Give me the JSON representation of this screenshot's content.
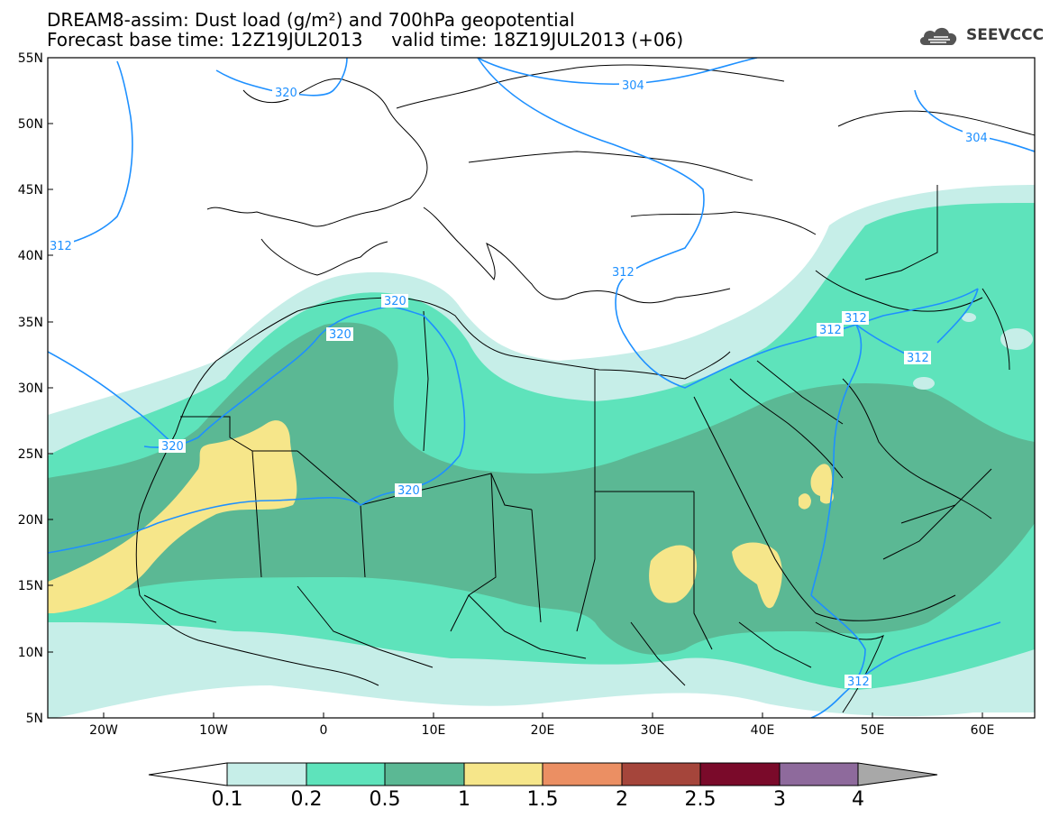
{
  "title": {
    "line1": "DREAM8-assim: Dust load (g/m²) and 700hPa geopotential",
    "line2": "Forecast base time: 12Z19JUL2013     valid time: 18Z19JUL2013 (+06)"
  },
  "logo": {
    "text": "SEEVCCC",
    "icon": "cloud-icon"
  },
  "map": {
    "lat_labels": [
      "55N",
      "50N",
      "45N",
      "40N",
      "35N",
      "30N",
      "25N",
      "20N",
      "15N",
      "10N",
      "5N"
    ],
    "lon_labels": [
      "20W",
      "10W",
      "0",
      "10E",
      "20E",
      "30E",
      "40E",
      "50E",
      "60E"
    ],
    "contour_labels": [
      "320",
      "320",
      "320",
      "320",
      "320",
      "304",
      "304",
      "312",
      "312",
      "312",
      "312",
      "312",
      "312"
    ],
    "contour_color": "#1e90ff"
  },
  "colorbar": {
    "levels": [
      "0.1",
      "0.2",
      "0.5",
      "1",
      "1.5",
      "2",
      "2.5",
      "3",
      "4"
    ],
    "colors": [
      "#ffffff",
      "#c6eee8",
      "#5ee3bb",
      "#5bb894",
      "#f6e68a",
      "#eb8f63",
      "#a5453b",
      "#7a0a2a",
      "#8e6a9c",
      "#a8a8a8"
    ]
  }
}
